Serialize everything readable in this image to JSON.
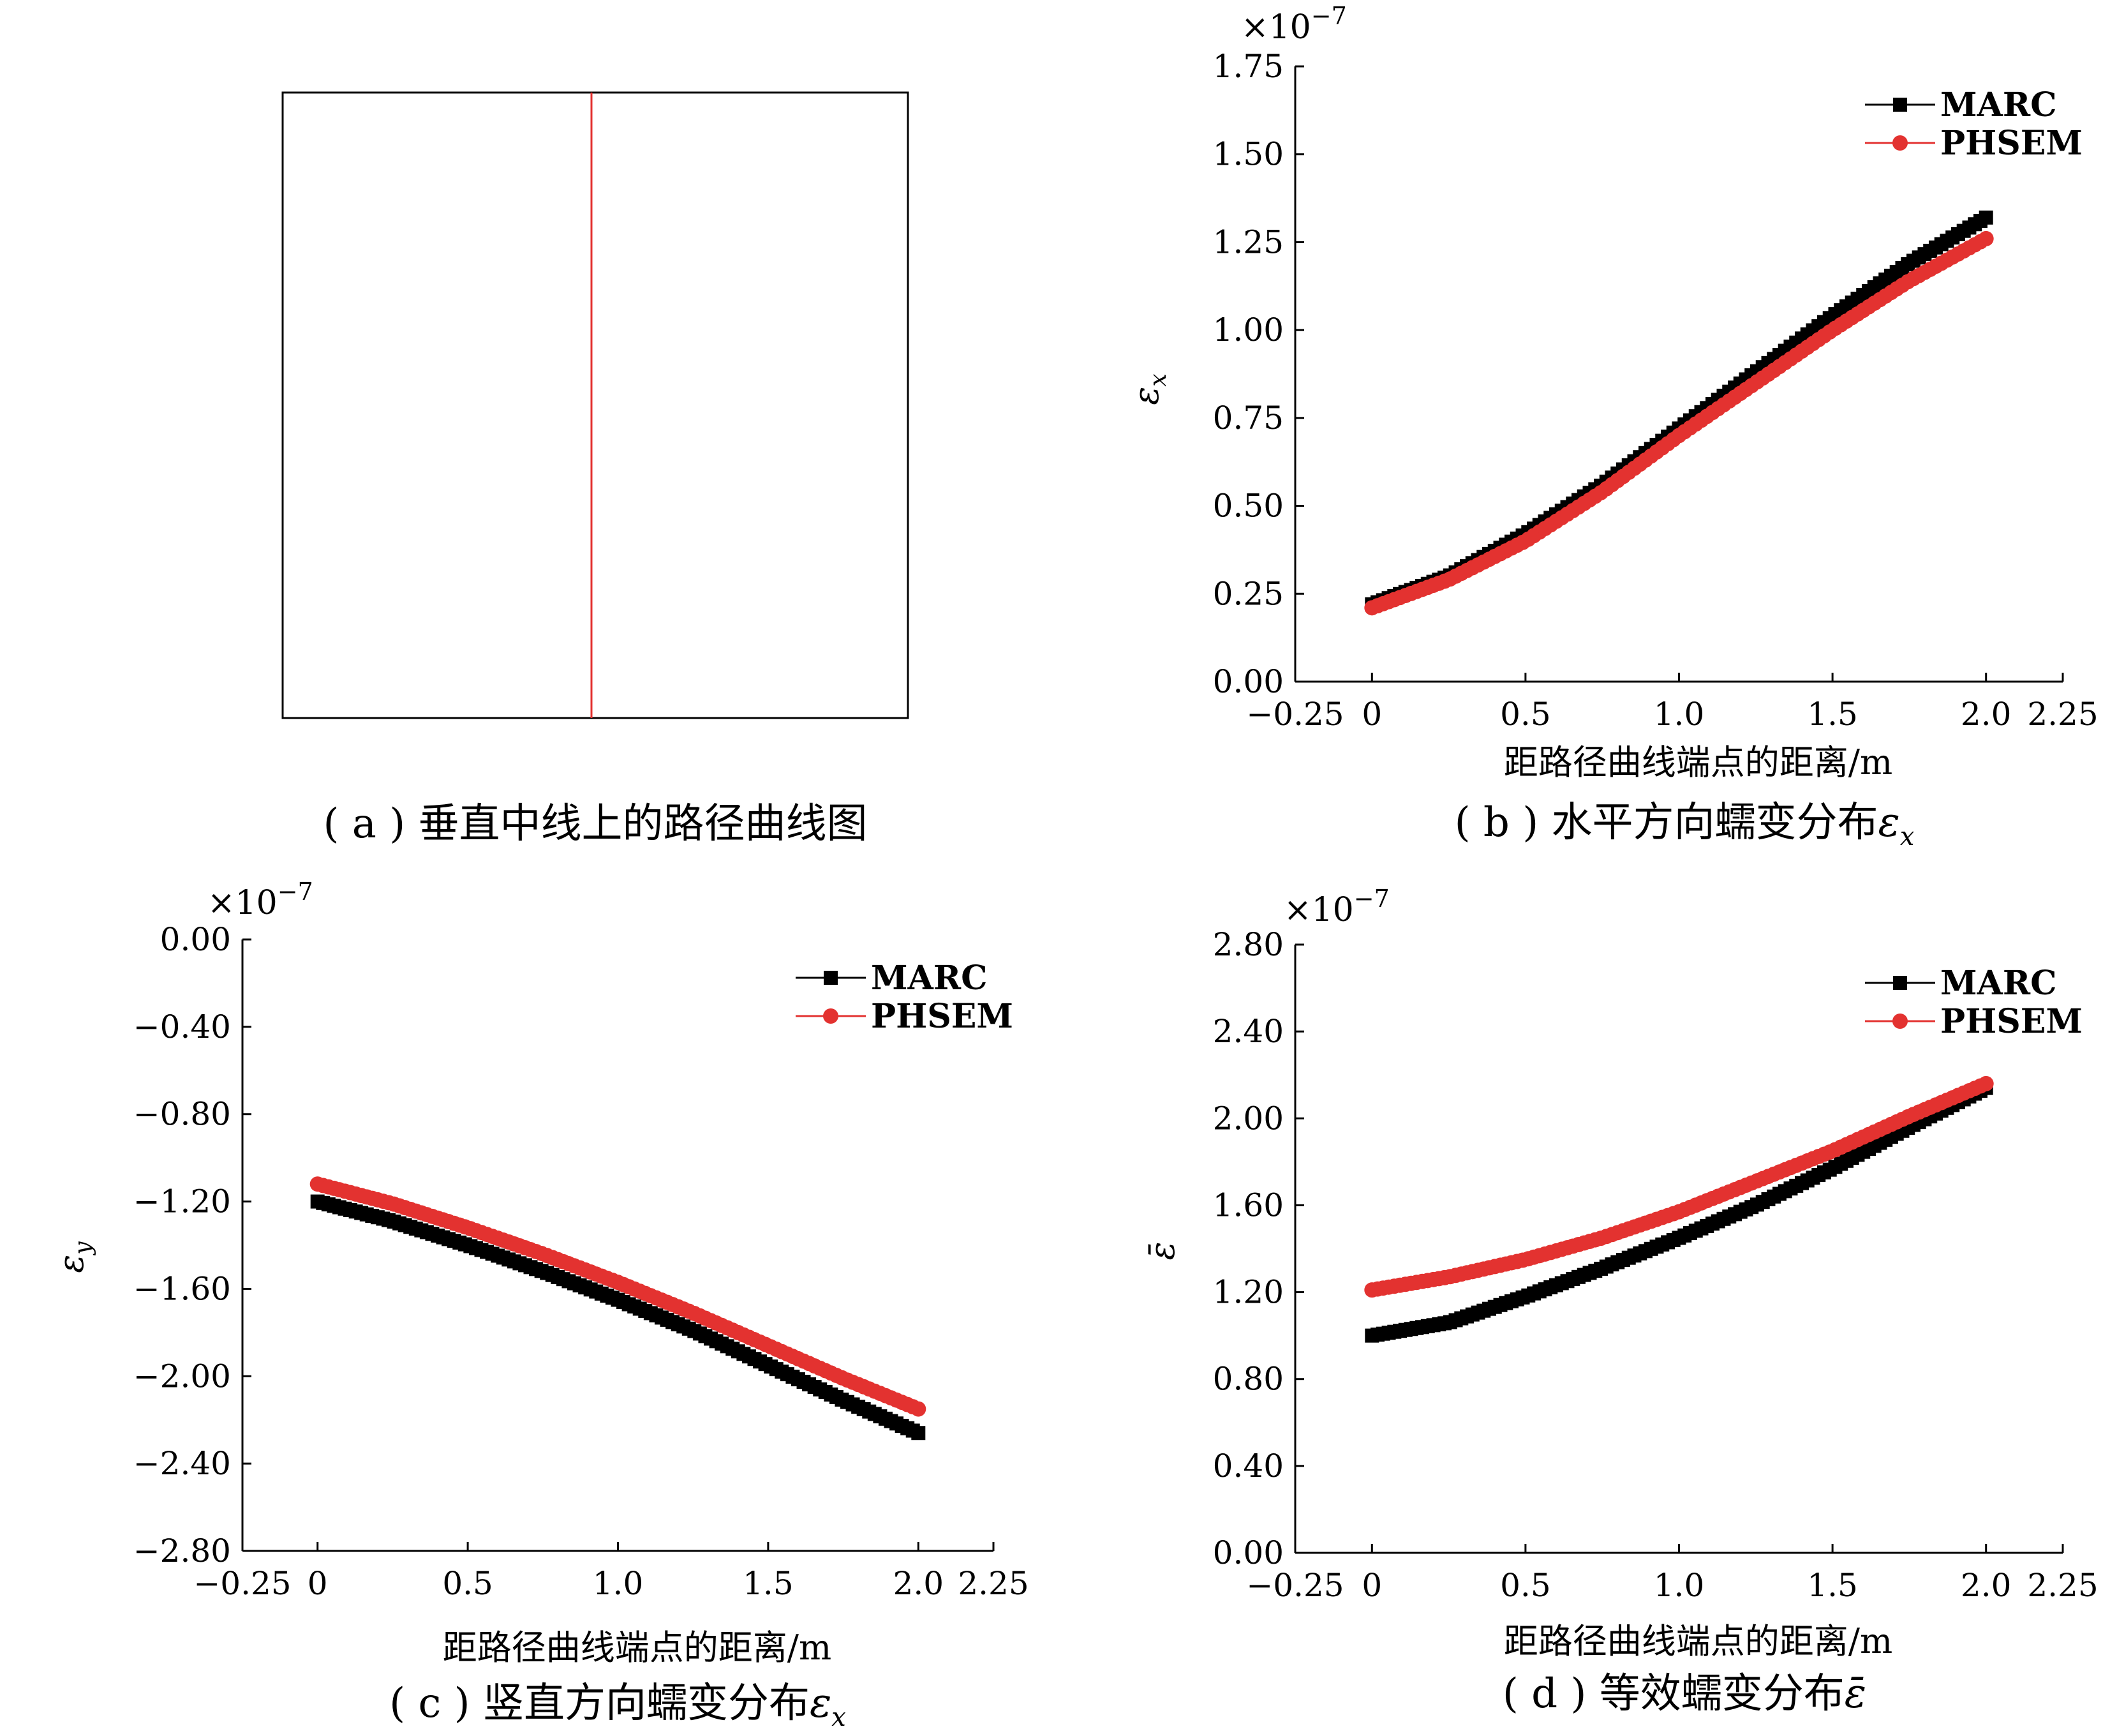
{
  "colors": {
    "marc": "#000000",
    "phsem": "#e33230",
    "axis": "#000000",
    "path_line": "#e33230"
  },
  "panel_a": {
    "caption": "( a ) 垂直中线上的路径曲线图"
  },
  "chart_data": [
    {
      "id": "b",
      "type": "line",
      "caption_prefix": "( b ) 水平方向蠕变分布",
      "caption_symbol": "ε",
      "caption_sub": "x",
      "xlabel": "距路径曲线端点的距离/m",
      "ylabel_symbol": "ε",
      "ylabel_sub": "x",
      "exponent": "×10",
      "exponent_power": "−7",
      "xlim": [
        -0.25,
        2.25
      ],
      "ylim": [
        0,
        1.75
      ],
      "xticks": [
        "−0.25",
        "0",
        "0.5",
        "1.0",
        "1.5",
        "2.0",
        "2.25"
      ],
      "xtick_values": [
        -0.25,
        0,
        0.5,
        1.0,
        1.5,
        2.0,
        2.25
      ],
      "yticks": [
        "0.00",
        "0.25",
        "0.50",
        "0.75",
        "1.00",
        "1.25",
        "1.50",
        "1.75"
      ],
      "ytick_values": [
        0,
        0.25,
        0.5,
        0.75,
        1.0,
        1.25,
        1.5,
        1.75
      ],
      "legend_position": "top-right",
      "series": [
        {
          "name": "MARC",
          "marker": "square",
          "x": [
            0,
            0.25,
            0.5,
            0.75,
            1.0,
            1.25,
            1.5,
            1.75,
            2.0
          ],
          "y": [
            0.22,
            0.3,
            0.42,
            0.56,
            0.72,
            0.88,
            1.04,
            1.19,
            1.32
          ]
        },
        {
          "name": "PHSEM",
          "marker": "circle",
          "x": [
            0,
            0.25,
            0.5,
            0.75,
            1.0,
            1.25,
            1.5,
            1.75,
            2.0
          ],
          "y": [
            0.21,
            0.29,
            0.4,
            0.54,
            0.7,
            0.85,
            1.0,
            1.14,
            1.26
          ]
        }
      ]
    },
    {
      "id": "c",
      "type": "line",
      "caption_prefix": "( c ) 竖直方向蠕变分布",
      "caption_symbol": "ε",
      "caption_sub": "x",
      "xlabel": "距路径曲线端点的距离/m",
      "ylabel_symbol": "ε",
      "ylabel_sub": "y",
      "exponent": "×10",
      "exponent_power": "−7",
      "xlim": [
        -0.25,
        2.25
      ],
      "ylim": [
        -2.8,
        0
      ],
      "xticks": [
        "−0.25",
        "0",
        "0.5",
        "1.0",
        "1.5",
        "2.0",
        "2.25"
      ],
      "xtick_values": [
        -0.25,
        0,
        0.5,
        1.0,
        1.5,
        2.0,
        2.25
      ],
      "yticks": [
        "0.00",
        "−0.40",
        "−0.80",
        "−1.20",
        "−1.60",
        "−2.00",
        "−2.40",
        "−2.80"
      ],
      "ytick_values": [
        0,
        -0.4,
        -0.8,
        -1.2,
        -1.6,
        -2.0,
        -2.4,
        -2.8
      ],
      "legend_position": "top-right",
      "series": [
        {
          "name": "MARC",
          "marker": "square",
          "x": [
            0,
            0.25,
            0.5,
            0.75,
            1.0,
            1.25,
            1.5,
            1.75,
            2.0
          ],
          "y": [
            -1.2,
            -1.29,
            -1.4,
            -1.52,
            -1.65,
            -1.79,
            -1.95,
            -2.11,
            -2.26
          ]
        },
        {
          "name": "PHSEM",
          "marker": "circle",
          "x": [
            0,
            0.25,
            0.5,
            0.75,
            1.0,
            1.25,
            1.5,
            1.75,
            2.0
          ],
          "y": [
            -1.12,
            -1.21,
            -1.32,
            -1.44,
            -1.57,
            -1.71,
            -1.86,
            -2.01,
            -2.15
          ]
        }
      ]
    },
    {
      "id": "d",
      "type": "line",
      "caption_prefix": "( d ) 等效蠕变分布",
      "caption_symbol": "ε̄",
      "caption_sub": "",
      "xlabel": "距路径曲线端点的距离/m",
      "ylabel_symbol": "ε̄",
      "ylabel_sub": "",
      "exponent": "×10",
      "exponent_power": "−7",
      "xlim": [
        -0.25,
        2.25
      ],
      "ylim": [
        0,
        2.8
      ],
      "xticks": [
        "−0.25",
        "0",
        "0.5",
        "1.0",
        "1.5",
        "2.0",
        "2.25"
      ],
      "xtick_values": [
        -0.25,
        0,
        0.5,
        1.0,
        1.5,
        2.0,
        2.25
      ],
      "yticks": [
        "0.00",
        "0.40",
        "0.80",
        "1.20",
        "1.60",
        "2.00",
        "2.40",
        "2.80"
      ],
      "ytick_values": [
        0,
        0.4,
        0.8,
        1.2,
        1.6,
        2.0,
        2.4,
        2.8
      ],
      "legend_position": "top-right",
      "series": [
        {
          "name": "MARC",
          "marker": "square",
          "x": [
            0,
            0.25,
            0.5,
            0.75,
            1.0,
            1.25,
            1.5,
            1.75,
            2.0
          ],
          "y": [
            1.0,
            1.06,
            1.18,
            1.31,
            1.45,
            1.6,
            1.77,
            1.96,
            2.14
          ]
        },
        {
          "name": "PHSEM",
          "marker": "circle",
          "x": [
            0,
            0.25,
            0.5,
            0.75,
            1.0,
            1.25,
            1.5,
            1.75,
            2.0
          ],
          "y": [
            1.21,
            1.27,
            1.35,
            1.45,
            1.57,
            1.71,
            1.85,
            2.01,
            2.16
          ]
        }
      ]
    }
  ]
}
